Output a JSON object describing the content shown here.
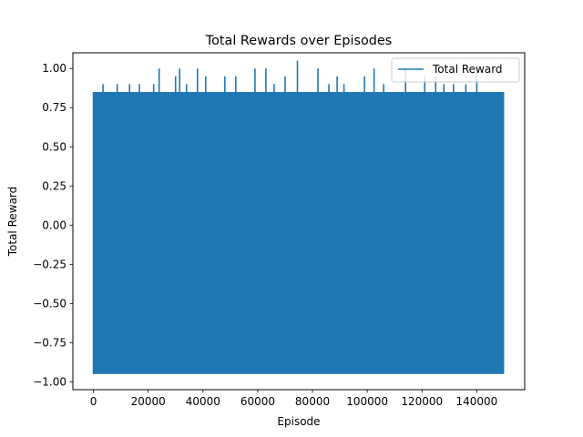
{
  "chart_data": {
    "type": "line",
    "title": "Total Rewards over Episodes",
    "xlabel": "Episode",
    "ylabel": "Total Reward",
    "xlim": [
      -7500,
      157500
    ],
    "ylim": [
      -1.05,
      1.1
    ],
    "x_ticks": [
      0,
      20000,
      40000,
      60000,
      80000,
      100000,
      120000,
      140000
    ],
    "x_tick_labels": [
      "0",
      "20000",
      "40000",
      "60000",
      "80000",
      "100000",
      "120000",
      "140000"
    ],
    "y_ticks": [
      -1.0,
      -0.75,
      -0.5,
      -0.25,
      0.0,
      0.25,
      0.5,
      0.75,
      1.0
    ],
    "y_tick_labels": [
      "−1.00",
      "−0.75",
      "−0.50",
      "−0.25",
      "0.00",
      "0.25",
      "0.50",
      "0.75",
      "1.00"
    ],
    "grid": false,
    "legend": "upper right",
    "series": [
      {
        "name": "Total Reward",
        "color": "#1f77b4",
        "x_range": [
          0,
          150000
        ],
        "min_value": -0.95,
        "typical_max": 0.85,
        "peak_max": 1.05,
        "dense_oscillation": true,
        "peaks": [
          {
            "x": 1800,
            "y": 0.85
          },
          {
            "x": 3500,
            "y": 0.9
          },
          {
            "x": 5600,
            "y": 0.85
          },
          {
            "x": 8700,
            "y": 0.9
          },
          {
            "x": 11800,
            "y": 0.65
          },
          {
            "x": 13200,
            "y": 0.9
          },
          {
            "x": 16800,
            "y": 0.9
          },
          {
            "x": 19000,
            "y": 0.85
          },
          {
            "x": 22000,
            "y": 0.9
          },
          {
            "x": 24000,
            "y": 1.0
          },
          {
            "x": 27500,
            "y": 0.85
          },
          {
            "x": 30000,
            "y": 0.95
          },
          {
            "x": 31500,
            "y": 1.0
          },
          {
            "x": 34000,
            "y": 0.9
          },
          {
            "x": 38000,
            "y": 1.0
          },
          {
            "x": 41000,
            "y": 0.95
          },
          {
            "x": 43500,
            "y": 0.85
          },
          {
            "x": 48000,
            "y": 0.95
          },
          {
            "x": 52000,
            "y": 0.95
          },
          {
            "x": 55000,
            "y": 0.85
          },
          {
            "x": 59000,
            "y": 1.0
          },
          {
            "x": 61000,
            "y": 0.8
          },
          {
            "x": 63000,
            "y": 1.0
          },
          {
            "x": 66000,
            "y": 0.9
          },
          {
            "x": 70000,
            "y": 0.95
          },
          {
            "x": 74500,
            "y": 1.05
          },
          {
            "x": 78000,
            "y": 0.85
          },
          {
            "x": 82000,
            "y": 1.0
          },
          {
            "x": 86000,
            "y": 0.9
          },
          {
            "x": 89000,
            "y": 0.95
          },
          {
            "x": 91500,
            "y": 0.9
          },
          {
            "x": 95000,
            "y": 0.85
          },
          {
            "x": 99000,
            "y": 0.95
          },
          {
            "x": 102500,
            "y": 1.0
          },
          {
            "x": 106000,
            "y": 0.9
          },
          {
            "x": 110000,
            "y": 0.85
          },
          {
            "x": 114000,
            "y": 1.0
          },
          {
            "x": 118000,
            "y": 0.85
          },
          {
            "x": 121000,
            "y": 0.95
          },
          {
            "x": 125000,
            "y": 0.95
          },
          {
            "x": 128000,
            "y": 0.9
          },
          {
            "x": 131500,
            "y": 0.9
          },
          {
            "x": 136000,
            "y": 0.9
          },
          {
            "x": 140000,
            "y": 1.0
          },
          {
            "x": 144000,
            "y": 0.85
          },
          {
            "x": 147500,
            "y": 0.85
          },
          {
            "x": 149500,
            "y": 0.85
          }
        ]
      }
    ]
  }
}
